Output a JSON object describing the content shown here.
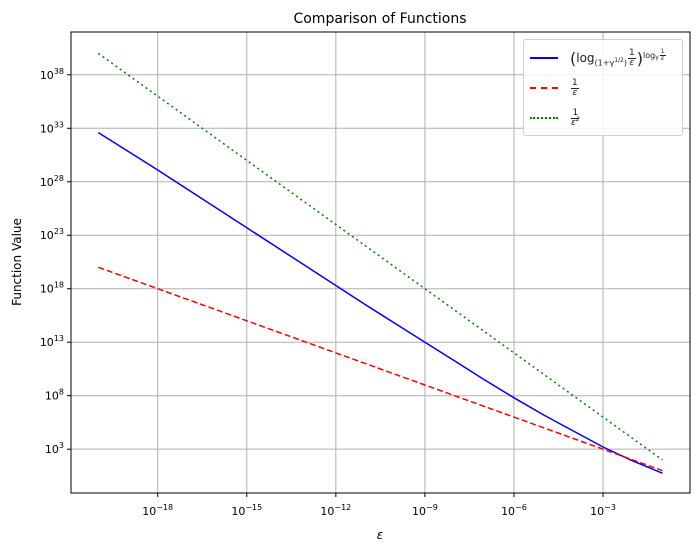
{
  "chart_data": {
    "type": "line",
    "title": "Comparison of Functions",
    "xlabel": "ε",
    "ylabel": "Function Value",
    "xscale": "log",
    "yscale": "log",
    "xlim": [
      1.2e-21,
      0.85
    ],
    "ylim": [
      0.08,
      1e+42
    ],
    "grid": true,
    "legend_position": "top-right",
    "x_ticks": [
      {
        "base": "10",
        "exp": "−18",
        "value": 1e-18
      },
      {
        "base": "10",
        "exp": "−15",
        "value": 1e-15
      },
      {
        "base": "10",
        "exp": "−12",
        "value": 1e-12
      },
      {
        "base": "10",
        "exp": "−9",
        "value": 1e-09
      },
      {
        "base": "10",
        "exp": "−6",
        "value": 1e-06
      },
      {
        "base": "10",
        "exp": "−3",
        "value": 0.001
      }
    ],
    "y_ticks": [
      {
        "base": "10",
        "exp": "3",
        "value": 1000.0
      },
      {
        "base": "10",
        "exp": "8",
        "value": 100000000.0
      },
      {
        "base": "10",
        "exp": "13",
        "value": 10000000000000.0
      },
      {
        "base": "10",
        "exp": "18",
        "value": 1e+18
      },
      {
        "base": "10",
        "exp": "23",
        "value": 1e+23
      },
      {
        "base": "10",
        "exp": "28",
        "value": 1e+28
      },
      {
        "base": "10",
        "exp": "33",
        "value": 1e+33
      },
      {
        "base": "10",
        "exp": "38",
        "value": 1e+38
      }
    ],
    "x": [
      1e-20,
      1e-19,
      1e-18,
      1e-17,
      1e-16,
      1e-15,
      1e-14,
      1e-13,
      1e-12,
      1e-11,
      1e-10,
      1e-09,
      1e-08,
      1e-07,
      1e-06,
      1e-05,
      0.0001,
      0.001,
      0.01,
      0.1
    ],
    "series": [
      {
        "color": "#0000ff",
        "style": "solid",
        "values": [
          3.98e+32,
          7.08e+30,
          1.26e+29,
          2e+27,
          3.16e+25,
          5e+23,
          7.94e+21,
          1.26e+20,
          2e+18,
          3.16e+16,
          562000000000000.0,
          10000000000000.0,
          178000000000.0,
          3160000000.0,
          63100000.0,
          1580000.0,
          50100.0,
          1585,
          79.4,
          5.62
        ]
      },
      {
        "color": "#ff0000",
        "style": "dashed",
        "values": [
          1e+20,
          1e+19,
          1e+18,
          1e+17,
          1e+16,
          1000000000000000.0,
          100000000000000.0,
          10000000000000.0,
          1000000000000.0,
          100000000000.0,
          10000000000.0,
          1000000000.0,
          100000000.0,
          10000000.0,
          1000000.0,
          100000.0,
          10000.0,
          1000.0,
          100.0,
          10
        ]
      },
      {
        "color": "#008000",
        "style": "dotted",
        "values": [
          1e+40,
          1e+38,
          1e+36,
          1e+34,
          1e+32,
          1e+30,
          1e+28,
          1e+26,
          1e+24,
          1e+22,
          1e+20,
          1e+18,
          1e+16,
          100000000000000.0,
          1000000000000.0,
          10000000000.0,
          100000000.0,
          1000000.0,
          10000.0,
          100.0
        ]
      }
    ],
    "legend": [
      {
        "open": "(",
        "fn": "log",
        "base": "(1+γ",
        "base_exp": "1/2",
        "base_close": ")",
        "num": "1",
        "den": "ε",
        "close": ")",
        "exp_fn": "log",
        "exp_base": "γ",
        "exp_num": "1",
        "exp_den": "ε"
      },
      {
        "num": "1",
        "den": "ε"
      },
      {
        "num": "1",
        "den": "ε",
        "den_exp": "2"
      }
    ]
  }
}
